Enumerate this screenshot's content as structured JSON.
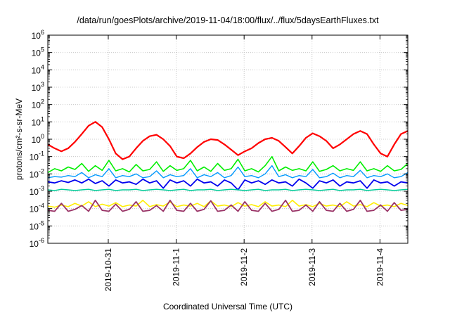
{
  "chart_data": {
    "type": "line",
    "title": "/data/run/goesPlots/archive/2019-11-04/18:00/flux/../flux/5daysEarthFluxes.txt",
    "xlabel": "Coordinated Universal Time (UTC)",
    "ylabel": "protons/cm²-s-sr-MeV",
    "yscale": "log",
    "ylim": [
      1e-06,
      1000000.0
    ],
    "yticks": [
      {
        "exp": "-6"
      },
      {
        "exp": "-5"
      },
      {
        "exp": "-4"
      },
      {
        "exp": "-3"
      },
      {
        "exp": "-2"
      },
      {
        "exp": "-1"
      },
      {
        "exp": "0"
      },
      {
        "exp": "1"
      },
      {
        "exp": "2"
      },
      {
        "exp": "3"
      },
      {
        "exp": "4"
      },
      {
        "exp": "5"
      },
      {
        "exp": "6"
      }
    ],
    "ytick_base": "10",
    "xlim": [
      0,
      5.3
    ],
    "xticks": [
      {
        "label": "2019-10-31",
        "x": 0.89
      },
      {
        "label": "2019-11-1",
        "x": 1.89
      },
      {
        "label": "2019-11-2",
        "x": 2.89
      },
      {
        "label": "2019-11-3",
        "x": 3.89
      },
      {
        "label": "2019-11-4",
        "x": 4.89
      }
    ],
    "grid": true,
    "legend": "none",
    "series": [
      {
        "color": "#ff0000",
        "width": 2.2,
        "x": [
          0,
          0.1,
          0.2,
          0.3,
          0.4,
          0.5,
          0.6,
          0.7,
          0.8,
          0.9,
          1.0,
          1.1,
          1.2,
          1.3,
          1.4,
          1.5,
          1.6,
          1.7,
          1.8,
          1.9,
          2.0,
          2.1,
          2.2,
          2.3,
          2.4,
          2.5,
          2.6,
          2.7,
          2.8,
          2.9,
          3.0,
          3.1,
          3.2,
          3.3,
          3.4,
          3.5,
          3.6,
          3.7,
          3.8,
          3.9,
          4.0,
          4.1,
          4.2,
          4.3,
          4.4,
          4.5,
          4.6,
          4.7,
          4.8,
          4.9,
          5.0,
          5.1,
          5.2,
          5.3
        ],
        "y": [
          0.5,
          0.3,
          0.2,
          0.3,
          0.7,
          2,
          6,
          10,
          5,
          1,
          0.15,
          0.07,
          0.1,
          0.3,
          0.8,
          1.5,
          1.8,
          1,
          0.4,
          0.1,
          0.08,
          0.15,
          0.35,
          0.7,
          1.0,
          0.9,
          0.5,
          0.25,
          0.12,
          0.2,
          0.3,
          0.6,
          1.0,
          1.2,
          0.8,
          0.35,
          0.15,
          0.4,
          1.2,
          2.2,
          1.5,
          0.8,
          0.3,
          0.5,
          1.0,
          2.0,
          3.0,
          2.0,
          0.5,
          0.15,
          0.1,
          0.5,
          2.0,
          3.0
        ]
      },
      {
        "color": "#00ee00",
        "width": 1.6,
        "x": [
          0,
          0.1,
          0.2,
          0.3,
          0.4,
          0.5,
          0.6,
          0.7,
          0.8,
          0.9,
          1.0,
          1.1,
          1.2,
          1.3,
          1.4,
          1.5,
          1.6,
          1.7,
          1.8,
          1.9,
          2.0,
          2.1,
          2.2,
          2.3,
          2.4,
          2.5,
          2.6,
          2.7,
          2.8,
          2.9,
          3.0,
          3.1,
          3.2,
          3.3,
          3.4,
          3.5,
          3.6,
          3.7,
          3.8,
          3.9,
          4.0,
          4.1,
          4.2,
          4.3,
          4.4,
          4.5,
          4.6,
          4.7,
          4.8,
          4.9,
          5.0,
          5.1,
          5.2,
          5.3
        ],
        "y": [
          0.012,
          0.02,
          0.015,
          0.025,
          0.018,
          0.04,
          0.014,
          0.03,
          0.016,
          0.06,
          0.015,
          0.02,
          0.013,
          0.035,
          0.015,
          0.018,
          0.05,
          0.014,
          0.03,
          0.016,
          0.02,
          0.06,
          0.015,
          0.025,
          0.014,
          0.04,
          0.016,
          0.02,
          0.07,
          0.015,
          0.02,
          0.013,
          0.03,
          0.1,
          0.015,
          0.025,
          0.016,
          0.02,
          0.015,
          0.05,
          0.014,
          0.018,
          0.03,
          0.015,
          0.02,
          0.016,
          0.05,
          0.015,
          0.02,
          0.014,
          0.03,
          0.015,
          0.018,
          0.04
        ]
      },
      {
        "color": "#0099ff",
        "width": 1.4,
        "x": [
          0,
          0.1,
          0.2,
          0.3,
          0.4,
          0.5,
          0.6,
          0.7,
          0.8,
          0.9,
          1.0,
          1.1,
          1.2,
          1.3,
          1.4,
          1.5,
          1.6,
          1.7,
          1.8,
          1.9,
          2.0,
          2.1,
          2.2,
          2.3,
          2.4,
          2.5,
          2.6,
          2.7,
          2.8,
          2.9,
          3.0,
          3.1,
          3.2,
          3.3,
          3.4,
          3.5,
          3.6,
          3.7,
          3.8,
          3.9,
          4.0,
          4.1,
          4.2,
          4.3,
          4.4,
          4.5,
          4.6,
          4.7,
          4.8,
          4.9,
          5.0,
          5.1,
          5.2,
          5.3
        ],
        "y": [
          0.006,
          0.007,
          0.0065,
          0.008,
          0.007,
          0.012,
          0.006,
          0.009,
          0.007,
          0.02,
          0.006,
          0.008,
          0.007,
          0.01,
          0.006,
          0.007,
          0.015,
          0.006,
          0.009,
          0.007,
          0.008,
          0.02,
          0.006,
          0.009,
          0.007,
          0.012,
          0.006,
          0.008,
          0.025,
          0.007,
          0.008,
          0.006,
          0.01,
          0.03,
          0.007,
          0.009,
          0.006,
          0.008,
          0.007,
          0.018,
          0.006,
          0.007,
          0.011,
          0.006,
          0.008,
          0.007,
          0.016,
          0.006,
          0.008,
          0.007,
          0.01,
          0.006,
          0.007,
          0.012
        ]
      },
      {
        "color": "#0000ee",
        "width": 1.8,
        "x": [
          0,
          0.1,
          0.2,
          0.3,
          0.4,
          0.5,
          0.6,
          0.7,
          0.8,
          0.9,
          1.0,
          1.1,
          1.2,
          1.3,
          1.4,
          1.5,
          1.6,
          1.7,
          1.8,
          1.9,
          2.0,
          2.1,
          2.2,
          2.3,
          2.4,
          2.5,
          2.6,
          2.7,
          2.8,
          2.9,
          3.0,
          3.1,
          3.2,
          3.3,
          3.4,
          3.5,
          3.6,
          3.7,
          3.8,
          3.9,
          4.0,
          4.1,
          4.2,
          4.3,
          4.4,
          4.5,
          4.6,
          4.7,
          4.8,
          4.9,
          5.0,
          5.1,
          5.2,
          5.3
        ],
        "y": [
          0.0035,
          0.003,
          0.004,
          0.0032,
          0.0045,
          0.003,
          0.005,
          0.0028,
          0.004,
          0.002,
          0.0045,
          0.003,
          0.0035,
          0.0025,
          0.005,
          0.003,
          0.004,
          0.0015,
          0.0045,
          0.003,
          0.004,
          0.002,
          0.005,
          0.003,
          0.0035,
          0.002,
          0.0045,
          0.003,
          0.0012,
          0.0045,
          0.003,
          0.004,
          0.0025,
          0.0045,
          0.003,
          0.0035,
          0.002,
          0.005,
          0.003,
          0.0015,
          0.004,
          0.003,
          0.0045,
          0.002,
          0.0035,
          0.003,
          0.004,
          0.0015,
          0.0045,
          0.003,
          0.0035,
          0.002,
          0.0035,
          0.003
        ]
      },
      {
        "color": "#00cc99",
        "width": 1.4,
        "x": [
          0,
          0.1,
          0.2,
          0.3,
          0.4,
          0.5,
          0.6,
          0.7,
          0.8,
          0.9,
          1.0,
          1.1,
          1.2,
          1.3,
          1.4,
          1.5,
          1.6,
          1.7,
          1.8,
          1.9,
          2.0,
          2.1,
          2.2,
          2.3,
          2.4,
          2.5,
          2.6,
          2.7,
          2.8,
          2.9,
          3.0,
          3.1,
          3.2,
          3.3,
          3.4,
          3.5,
          3.6,
          3.7,
          3.8,
          3.9,
          4.0,
          4.1,
          4.2,
          4.3,
          4.4,
          4.5,
          4.6,
          4.7,
          4.8,
          4.9,
          5.0,
          5.1,
          5.2,
          5.3
        ],
        "y": [
          0.0012,
          0.0011,
          0.0013,
          0.0012,
          0.0011,
          0.0012,
          0.0013,
          0.0011,
          0.0012,
          0.0013,
          0.0011,
          0.0012,
          0.0012,
          0.0013,
          0.0011,
          0.0012,
          0.0013,
          0.0012,
          0.0011,
          0.0012,
          0.0013,
          0.0011,
          0.0012,
          0.0012,
          0.0013,
          0.0011,
          0.0012,
          0.0013,
          0.0012,
          0.0011,
          0.0012,
          0.0013,
          0.0011,
          0.0012,
          0.0012,
          0.0013,
          0.0011,
          0.0012,
          0.0013,
          0.0012,
          0.0011,
          0.0012,
          0.0013,
          0.0011,
          0.0012,
          0.0012,
          0.0013,
          0.0011,
          0.0012,
          0.0013,
          0.0012,
          0.0011,
          0.0012,
          0.0013
        ]
      },
      {
        "color": "#ffee00",
        "width": 1.6,
        "x": [
          0,
          0.1,
          0.2,
          0.3,
          0.4,
          0.5,
          0.6,
          0.7,
          0.8,
          0.9,
          1.0,
          1.1,
          1.2,
          1.3,
          1.4,
          1.5,
          1.6,
          1.7,
          1.8,
          1.9,
          2.0,
          2.1,
          2.2,
          2.3,
          2.4,
          2.5,
          2.6,
          2.7,
          2.8,
          2.9,
          3.0,
          3.1,
          3.2,
          3.3,
          3.4,
          3.5,
          3.6,
          3.7,
          3.8,
          3.9,
          4.0,
          4.1,
          4.2,
          4.3,
          4.4,
          4.5,
          4.6,
          4.7,
          4.8,
          4.9,
          5.0,
          5.1,
          5.2,
          5.3
        ],
        "y": [
          0.00014,
          0.00012,
          0.00016,
          0.00013,
          0.0002,
          0.00014,
          0.00025,
          0.00013,
          0.00018,
          0.00014,
          0.00022,
          0.00013,
          0.00016,
          0.00014,
          0.0003,
          0.00013,
          0.00017,
          0.00014,
          0.00024,
          0.00013,
          0.00016,
          0.00014,
          0.0002,
          0.00013,
          0.00028,
          0.00014,
          0.00016,
          0.00013,
          0.00022,
          0.00014,
          0.00017,
          0.00013,
          0.00025,
          0.00014,
          0.00016,
          0.00013,
          0.0003,
          0.00014,
          0.00017,
          0.00013,
          0.0002,
          0.00014,
          0.00016,
          0.00013,
          0.00025,
          0.00014,
          0.00017,
          0.00013,
          0.00022,
          0.00014,
          0.00016,
          0.00013,
          0.0002,
          0.00015
        ]
      },
      {
        "color": "#993366",
        "width": 1.8,
        "x": [
          0,
          0.1,
          0.2,
          0.3,
          0.4,
          0.5,
          0.6,
          0.7,
          0.8,
          0.9,
          1.0,
          1.1,
          1.2,
          1.3,
          1.4,
          1.5,
          1.6,
          1.7,
          1.8,
          1.9,
          2.0,
          2.1,
          2.2,
          2.3,
          2.4,
          2.5,
          2.6,
          2.7,
          2.8,
          2.9,
          3.0,
          3.1,
          3.2,
          3.3,
          3.4,
          3.5,
          3.6,
          3.7,
          3.8,
          3.9,
          4.0,
          4.1,
          4.2,
          4.3,
          4.4,
          4.5,
          4.6,
          4.7,
          4.8,
          4.9,
          5.0,
          5.1,
          5.2,
          5.3
        ],
        "y": [
          8e-05,
          7e-05,
          0.0002,
          7e-05,
          9e-05,
          0.00015,
          7e-05,
          0.0003,
          8e-05,
          7e-05,
          0.00018,
          7e-05,
          9e-05,
          0.00025,
          7e-05,
          8e-05,
          0.00015,
          7e-05,
          0.0003,
          8e-05,
          7e-05,
          0.0002,
          7e-05,
          9e-05,
          0.00028,
          7e-05,
          8e-05,
          0.00016,
          7e-05,
          0.00025,
          8e-05,
          7e-05,
          0.0002,
          7e-05,
          9e-05,
          0.0003,
          7e-05,
          8e-05,
          0.00016,
          7e-05,
          0.00025,
          8e-05,
          7e-05,
          0.0002,
          7e-05,
          9e-05,
          0.0003,
          7e-05,
          8e-05,
          0.00016,
          7e-05,
          0.00022,
          8e-05,
          9e-05
        ]
      }
    ]
  }
}
